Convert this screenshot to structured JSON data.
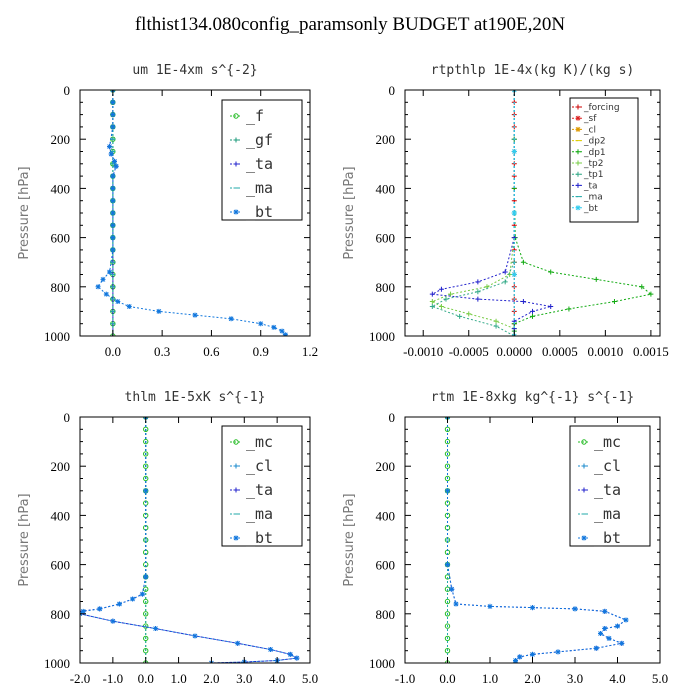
{
  "title": "flthist134.080config_paramsonly  BUDGET at190E,20N",
  "chart_data": [
    {
      "type": "line",
      "title": "um  1E-4xm s^{-2}",
      "ylabel": "Pressure [hPa]",
      "xlim": [
        -0.2,
        1.2
      ],
      "ylim": [
        1000,
        0
      ],
      "xticks": [
        0.0,
        0.3,
        0.6,
        0.9,
        1.2
      ],
      "xtick_labels": [
        "0.0",
        "0.3",
        "0.6",
        "0.9",
        "1.2"
      ],
      "yticks": [
        0,
        200,
        400,
        600,
        800,
        1000
      ],
      "series": [
        {
          "name": "_f",
          "color": "#22bb22",
          "marker": "circle",
          "x": [
            0,
            0,
            0,
            0,
            0,
            0,
            0,
            0,
            0,
            0,
            0,
            0,
            0,
            0,
            0,
            0,
            0,
            0,
            0,
            0,
            0
          ],
          "y": [
            0,
            50,
            100,
            150,
            200,
            250,
            300,
            350,
            400,
            450,
            500,
            550,
            600,
            650,
            700,
            750,
            800,
            850,
            900,
            950,
            1000
          ]
        },
        {
          "name": "_gf",
          "color": "#1a9a7a",
          "marker": "cross",
          "x": [
            0,
            0,
            0,
            0,
            0,
            0,
            0,
            0,
            0,
            0,
            0,
            0,
            0,
            0,
            0,
            0,
            0,
            0,
            0,
            0,
            0
          ],
          "y": [
            0,
            50,
            100,
            150,
            200,
            250,
            300,
            350,
            400,
            450,
            500,
            550,
            600,
            650,
            700,
            750,
            800,
            850,
            900,
            950,
            1000
          ]
        },
        {
          "name": "_ta",
          "color": "#2222cc",
          "marker": "cross",
          "x": [
            0,
            0,
            0,
            0,
            -0.02,
            -0.01,
            0.01,
            0.02,
            0,
            0,
            0,
            0,
            0,
            0,
            0,
            0,
            0,
            0,
            0,
            0,
            0
          ],
          "y": [
            0,
            50,
            100,
            150,
            230,
            260,
            290,
            310,
            350,
            400,
            450,
            500,
            550,
            600,
            650,
            700,
            750,
            800,
            850,
            900,
            1000
          ]
        },
        {
          "name": "_ma",
          "color": "#22aaaa",
          "marker": "dash",
          "x": [
            0,
            0,
            0,
            0,
            0,
            0,
            0,
            0,
            0,
            0,
            0,
            0,
            0,
            0,
            0,
            0,
            0,
            0,
            0,
            0,
            0
          ],
          "y": [
            0,
            50,
            100,
            150,
            200,
            250,
            300,
            350,
            400,
            450,
            500,
            550,
            600,
            650,
            700,
            750,
            800,
            850,
            900,
            950,
            1000
          ]
        },
        {
          "name": "_bt",
          "color": "#1177dd",
          "marker": "star",
          "x": [
            0,
            0,
            0,
            0,
            -0.02,
            -0.01,
            0.01,
            0.02,
            0,
            0,
            0,
            0,
            0,
            0,
            0,
            -0.02,
            -0.06,
            -0.09,
            -0.04,
            0.03,
            0.1,
            0.28,
            0.5,
            0.72,
            0.9,
            0.98,
            1.03,
            1.05,
            1.05
          ],
          "y": [
            0,
            50,
            100,
            150,
            230,
            260,
            290,
            310,
            350,
            400,
            450,
            500,
            550,
            600,
            650,
            740,
            770,
            800,
            830,
            860,
            880,
            900,
            915,
            930,
            950,
            965,
            980,
            995,
            1000
          ]
        }
      ]
    },
    {
      "type": "line",
      "title": "rtpthlp  1E-4x(kg K)/(kg s)",
      "ylabel": "Pressure [hPa]",
      "xlim": [
        -0.0012,
        0.0016
      ],
      "ylim": [
        1000,
        0
      ],
      "xticks": [
        -0.001,
        -0.0005,
        0.0,
        0.0005,
        0.001,
        0.0015
      ],
      "xtick_labels": [
        "-0.0010",
        "-0.0005",
        "0.0000",
        "0.0005",
        "0.0010",
        "0.0015"
      ],
      "yticks": [
        0,
        200,
        400,
        600,
        800,
        1000
      ],
      "series": [
        {
          "name": "_forcing",
          "color": "#cc0000",
          "marker": "cross",
          "x": [
            0,
            0,
            0,
            0,
            0,
            0,
            0,
            0,
            0,
            0,
            0,
            0,
            0,
            0,
            0,
            0,
            0,
            0,
            0,
            0,
            0
          ],
          "y": [
            0,
            50,
            100,
            150,
            200,
            250,
            300,
            350,
            400,
            450,
            500,
            550,
            600,
            650,
            700,
            750,
            800,
            850,
            900,
            950,
            1000
          ]
        },
        {
          "name": "_sf",
          "color": "#dd2222",
          "marker": "star",
          "x": [],
          "y": []
        },
        {
          "name": "_cl",
          "color": "#dd9900",
          "marker": "star",
          "x": [],
          "y": []
        },
        {
          "name": "_dp2",
          "color": "#ddcc00",
          "marker": "dash",
          "x": [],
          "y": []
        },
        {
          "name": "_dp1",
          "color": "#11aa11",
          "marker": "cross",
          "x": [
            0,
            0,
            0,
            1e-05,
            0.0001,
            0.0004,
            0.0009,
            0.0014,
            0.0015,
            0.0011,
            0.0006,
            0.0002,
            0,
            0,
            0
          ],
          "y": [
            0,
            200,
            400,
            600,
            700,
            740,
            770,
            800,
            830,
            860,
            890,
            920,
            950,
            980,
            1000
          ]
        },
        {
          "name": "_tp2",
          "color": "#77cc44",
          "marker": "cross",
          "x": [
            0,
            0,
            0,
            -5e-05,
            -0.0003,
            -0.0007,
            -0.0009,
            -0.0008,
            -0.0005,
            -0.0002,
            0,
            0
          ],
          "y": [
            0,
            200,
            600,
            750,
            800,
            830,
            860,
            880,
            910,
            940,
            970,
            1000
          ]
        },
        {
          "name": "_tp1",
          "color": "#33aa88",
          "marker": "cross",
          "x": [
            0,
            0,
            0,
            -0.0001,
            -0.0004,
            -0.00075,
            -0.0009,
            -0.0006,
            -0.0002,
            0
          ],
          "y": [
            0,
            200,
            700,
            780,
            820,
            850,
            880,
            920,
            960,
            1000
          ]
        },
        {
          "name": "_ta",
          "color": "#2222cc",
          "marker": "cross",
          "x": [
            0,
            0,
            -0.0001,
            -0.0004,
            -0.0008,
            -0.0009,
            -0.0004,
            0.0001,
            0.0004,
            0.0002,
            0,
            0,
            0
          ],
          "y": [
            0,
            600,
            740,
            780,
            810,
            830,
            850,
            860,
            880,
            900,
            940,
            970,
            1000
          ]
        },
        {
          "name": "_ma",
          "color": "#22aaaa",
          "marker": "dash",
          "x": [
            0,
            0,
            0,
            0,
            0
          ],
          "y": [
            0,
            250,
            500,
            750,
            1000
          ]
        },
        {
          "name": "_bt",
          "color": "#33ccee",
          "marker": "star",
          "x": [
            0,
            0,
            0,
            0,
            0
          ],
          "y": [
            0,
            250,
            500,
            750,
            1000
          ]
        }
      ]
    },
    {
      "type": "line",
      "title": "thlm  1E-5xK s^{-1}",
      "ylabel": "Pressure [hPa]",
      "xlim": [
        -2.0,
        5.0
      ],
      "ylim": [
        1000,
        0
      ],
      "xticks": [
        -2,
        -1,
        0,
        1,
        2,
        3,
        4,
        5
      ],
      "xtick_labels": [
        "-2.0",
        "-1.0",
        "0.0",
        "1.0",
        "2.0",
        "3.0",
        "4.0",
        "5.0"
      ],
      "yticks": [
        0,
        200,
        400,
        600,
        800,
        1000
      ],
      "series": [
        {
          "name": "_mc",
          "color": "#22bb22",
          "marker": "circle",
          "x": [
            0,
            0,
            0,
            0,
            0,
            0,
            0,
            0,
            0,
            0,
            0,
            0,
            0,
            0,
            0,
            0,
            0,
            0,
            0,
            0,
            0
          ],
          "y": [
            0,
            50,
            100,
            150,
            200,
            250,
            300,
            350,
            400,
            450,
            500,
            550,
            600,
            650,
            700,
            750,
            800,
            850,
            900,
            950,
            1000
          ]
        },
        {
          "name": "_cl",
          "color": "#1a8acc",
          "marker": "cross",
          "x": [],
          "y": []
        },
        {
          "name": "_ta",
          "color": "#2222cc",
          "marker": "cross",
          "x": [
            0,
            0,
            -0.1,
            -0.4,
            -0.8,
            -1.4,
            -2.0,
            -2.0,
            -1.0,
            0.3,
            1.5,
            2.8,
            3.8,
            4.4,
            4.6,
            4.0,
            3.0,
            2.0
          ],
          "y": [
            0,
            650,
            720,
            740,
            760,
            780,
            790,
            800,
            830,
            860,
            890,
            920,
            945,
            965,
            980,
            990,
            996,
            1000
          ]
        },
        {
          "name": "_ma",
          "color": "#22aaaa",
          "marker": "dash",
          "x": [
            0,
            0,
            0
          ],
          "y": [
            0,
            500,
            1000
          ]
        },
        {
          "name": "_bt",
          "color": "#1177dd",
          "marker": "star",
          "x": [
            0,
            0,
            0,
            -0.1,
            -0.4,
            -0.8,
            -1.4,
            -1.9,
            -2.0,
            -1.0,
            0.3,
            1.5,
            2.8,
            3.8,
            4.4,
            4.6,
            4.0,
            3.0,
            2.0
          ],
          "y": [
            0,
            300,
            650,
            720,
            740,
            760,
            780,
            790,
            800,
            830,
            860,
            890,
            920,
            945,
            965,
            980,
            990,
            996,
            1000
          ]
        }
      ]
    },
    {
      "type": "line",
      "title": "rtm  1E-8xkg kg^{-1} s^{-1}",
      "ylabel": "Pressure [hPa]",
      "xlim": [
        -1.0,
        5.0
      ],
      "ylim": [
        1000,
        0
      ],
      "xticks": [
        -1,
        0,
        1,
        2,
        3,
        4,
        5
      ],
      "xtick_labels": [
        "-1.0",
        "0.0",
        "1.0",
        "2.0",
        "3.0",
        "4.0",
        "5.0"
      ],
      "yticks": [
        0,
        200,
        400,
        600,
        800,
        1000
      ],
      "series": [
        {
          "name": "_mc",
          "color": "#22bb22",
          "marker": "circle",
          "x": [
            0,
            0,
            0,
            0,
            0,
            0,
            0,
            0,
            0,
            0,
            0,
            0,
            0,
            0,
            0,
            0,
            0,
            0,
            0,
            0,
            0
          ],
          "y": [
            0,
            50,
            100,
            150,
            200,
            250,
            300,
            350,
            400,
            450,
            500,
            550,
            600,
            650,
            700,
            750,
            800,
            850,
            900,
            950,
            1000
          ]
        },
        {
          "name": "_cl",
          "color": "#1a8acc",
          "marker": "cross",
          "x": [],
          "y": []
        },
        {
          "name": "_ta",
          "color": "#2222cc",
          "marker": "cross",
          "x": [
            0,
            0,
            0.1,
            0.2,
            1.0,
            2.0,
            3.0,
            3.7,
            4.2,
            4.0,
            3.7,
            3.6,
            3.8,
            4.1,
            3.5,
            2.6,
            2.0,
            1.7,
            1.6,
            1.6
          ],
          "y": [
            0,
            600,
            700,
            760,
            770,
            775,
            780,
            790,
            825,
            850,
            860,
            880,
            900,
            920,
            940,
            955,
            965,
            975,
            990,
            1000
          ]
        },
        {
          "name": "_ma",
          "color": "#22aaaa",
          "marker": "dash",
          "x": [
            0,
            0,
            0
          ],
          "y": [
            0,
            500,
            1000
          ]
        },
        {
          "name": "_bt",
          "color": "#1177dd",
          "marker": "star",
          "x": [
            0,
            0,
            0,
            0.1,
            0.2,
            1.0,
            2.0,
            3.0,
            3.7,
            4.2,
            4.0,
            3.7,
            3.6,
            3.8,
            4.1,
            3.5,
            2.6,
            2.0,
            1.7,
            1.6,
            1.6
          ],
          "y": [
            0,
            300,
            600,
            700,
            760,
            770,
            775,
            780,
            790,
            825,
            850,
            860,
            880,
            900,
            920,
            940,
            955,
            965,
            975,
            990,
            1000
          ]
        }
      ]
    }
  ]
}
